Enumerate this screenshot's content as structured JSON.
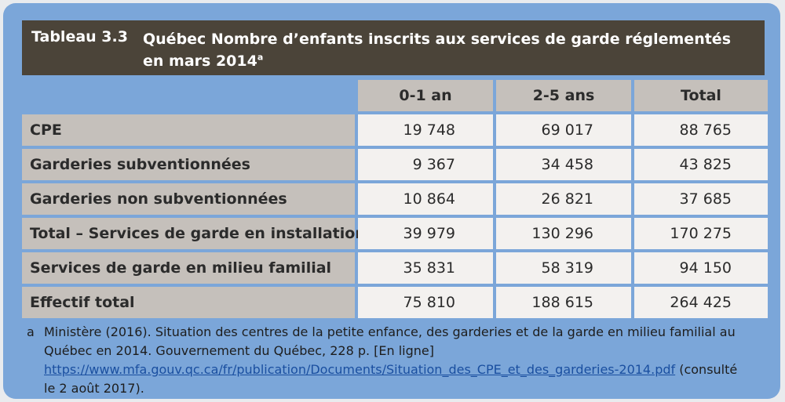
{
  "table": {
    "number": "Tableau 3.3",
    "title": "Québec Nombre d’enfants inscrits aux services de garde réglementés en mars 2014",
    "title_sup": "a",
    "columns": [
      "0-1 an",
      "2-5 ans",
      "Total"
    ],
    "rows": [
      {
        "label": "CPE",
        "values": [
          "19 748",
          "69 017",
          "88 765"
        ]
      },
      {
        "label": "Garderies subventionnées",
        "values": [
          "9 367",
          "34 458",
          "43 825"
        ]
      },
      {
        "label": "Garderies non subventionnées",
        "values": [
          "10 864",
          "26 821",
          "37 685"
        ]
      },
      {
        "label": "Total – Services de garde en installation",
        "values": [
          "39 979",
          "130 296",
          "170 275"
        ]
      },
      {
        "label": "Services de garde en milieu familial",
        "values": [
          "35 831",
          "58 319",
          "94 150"
        ]
      },
      {
        "label": "Effectif total",
        "values": [
          "75 810",
          "188 615",
          "264 425"
        ]
      }
    ]
  },
  "footnote": {
    "mark": "a",
    "text_before": "Ministère (2016). Situation des centres de la petite enfance, des garderies et de la garde en milieu familial au Québec en 2014. Gouvernement du Québec, 228 p. [En ligne] ",
    "link": "https://www.mfa.gouv.qc.ca/fr/publication/Documents/Situation_des_CPE_et_des_garderies-2014.pdf",
    "text_after": " (consulté le 2 août 2017)."
  }
}
